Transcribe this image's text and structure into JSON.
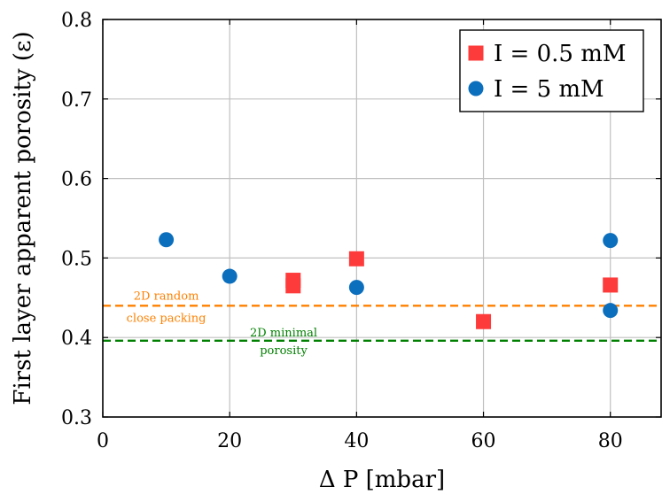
{
  "chart_data": {
    "type": "scatter",
    "xlabel": "Δ P [mbar]",
    "ylabel": "First layer apparent porosity (ε)",
    "xlim": [
      0,
      88
    ],
    "ylim": [
      0.3,
      0.8
    ],
    "x_ticks": [
      0,
      20,
      40,
      60,
      80
    ],
    "y_ticks": [
      "0.3",
      "0.4",
      "0.5",
      "0.6",
      "0.7",
      "0.8"
    ],
    "grid": true,
    "legend_position": "top-right",
    "series": [
      {
        "name": "I = 0.5 mM",
        "marker": "square",
        "color": "#fe3b3b",
        "points": [
          {
            "x": 30,
            "y": 0.472
          },
          {
            "x": 30,
            "y": 0.465
          },
          {
            "x": 40,
            "y": 0.499
          },
          {
            "x": 60,
            "y": 0.42
          },
          {
            "x": 80,
            "y": 0.466
          }
        ]
      },
      {
        "name": "I = 5 mM",
        "marker": "circle",
        "color": "#0c6fbd",
        "points": [
          {
            "x": 10,
            "y": 0.523
          },
          {
            "x": 20,
            "y": 0.477
          },
          {
            "x": 40,
            "y": 0.463
          },
          {
            "x": 80,
            "y": 0.522
          },
          {
            "x": 80,
            "y": 0.434
          }
        ]
      }
    ],
    "reference_lines": [
      {
        "y": 0.44,
        "color": "#ff8000",
        "label_lines": [
          "2D random",
          "close packing"
        ]
      },
      {
        "y": 0.396,
        "color": "#008000",
        "label_lines": [
          "2D minimal",
          "porosity"
        ]
      }
    ]
  }
}
